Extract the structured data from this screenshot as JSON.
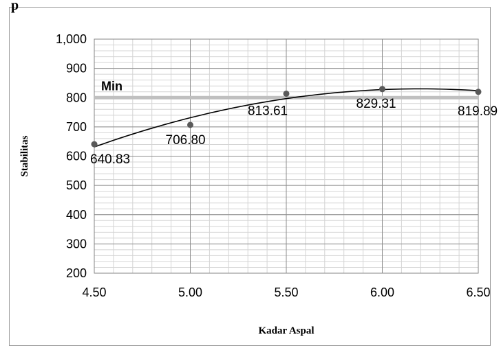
{
  "header_fragment": "p",
  "chart_data": {
    "type": "scatter",
    "title": "",
    "xlabel": "Kadar Aspal",
    "ylabel": "Stabilitas",
    "xlim": [
      4.5,
      6.5
    ],
    "ylim": [
      200,
      1000
    ],
    "x_ticks": [
      "4.50",
      "5.00",
      "5.50",
      "6.00",
      "6.50"
    ],
    "y_ticks": [
      "200",
      "300",
      "400",
      "500",
      "600",
      "700",
      "800",
      "900",
      "1,000"
    ],
    "grid": true,
    "legend": "none",
    "series": [
      {
        "x": [
          4.5,
          5.0,
          5.5,
          6.0,
          6.5
        ],
        "y": [
          640.83,
          706.8,
          813.61,
          829.31,
          819.89
        ],
        "labels": [
          "640.83",
          "706.80",
          "813.61",
          "829.31",
          "819.89"
        ],
        "marker_color": "#595959"
      }
    ],
    "trendline": {
      "type": "polynomial",
      "order": 2,
      "color": "#000000"
    },
    "reference_line": {
      "label": "Min",
      "y": 800,
      "color": "#c0c0c0"
    }
  }
}
